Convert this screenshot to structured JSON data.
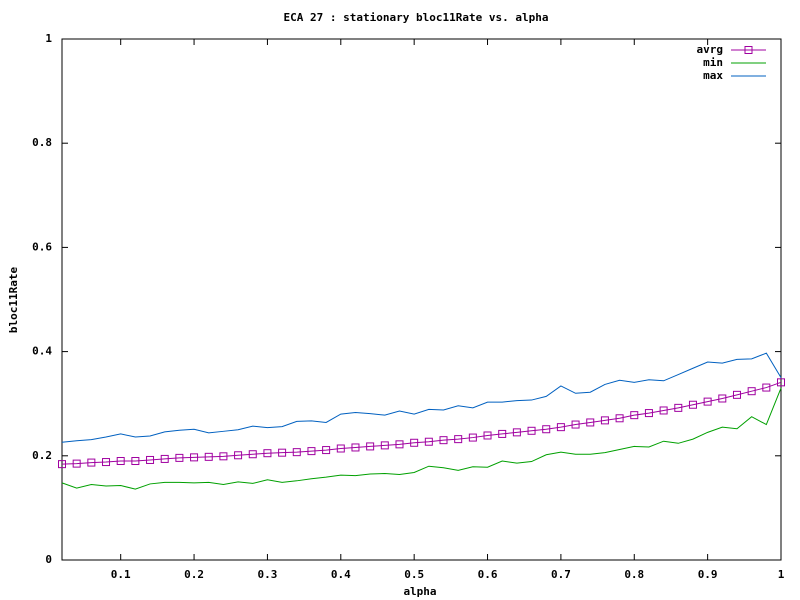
{
  "chart_data": {
    "type": "line",
    "title": "ECA 27 : stationary bloc11Rate vs. alpha",
    "x_label": "alpha",
    "y_label": "bloc11Rate",
    "x": [
      0.02,
      0.04,
      0.06,
      0.08,
      0.1,
      0.12,
      0.14,
      0.16,
      0.18,
      0.2,
      0.22,
      0.24,
      0.26,
      0.28,
      0.3,
      0.32,
      0.34,
      0.36,
      0.38,
      0.4,
      0.42,
      0.44,
      0.46,
      0.48,
      0.5,
      0.52,
      0.54,
      0.56,
      0.58,
      0.6,
      0.62,
      0.64,
      0.66,
      0.68,
      0.7,
      0.72,
      0.74,
      0.76,
      0.78,
      0.8,
      0.82,
      0.84,
      0.86,
      0.88,
      0.9,
      0.92,
      0.94,
      0.96,
      0.98,
      1
    ],
    "series": [
      {
        "name": "avrg",
        "color": "#a000a0",
        "marker": "square",
        "values": [
          0.184,
          0.185,
          0.187,
          0.188,
          0.19,
          0.19,
          0.192,
          0.194,
          0.196,
          0.197,
          0.198,
          0.199,
          0.201,
          0.203,
          0.205,
          0.206,
          0.207,
          0.209,
          0.211,
          0.214,
          0.216,
          0.218,
          0.22,
          0.222,
          0.225,
          0.227,
          0.23,
          0.232,
          0.235,
          0.239,
          0.242,
          0.245,
          0.248,
          0.251,
          0.255,
          0.26,
          0.264,
          0.268,
          0.272,
          0.278,
          0.282,
          0.287,
          0.292,
          0.298,
          0.304,
          0.31,
          0.317,
          0.324,
          0.331,
          0.341
        ]
      },
      {
        "name": "min",
        "color": "#00a000",
        "values": [
          0.148,
          0.138,
          0.145,
          0.142,
          0.143,
          0.136,
          0.146,
          0.149,
          0.149,
          0.148,
          0.149,
          0.145,
          0.15,
          0.147,
          0.154,
          0.149,
          0.152,
          0.156,
          0.159,
          0.163,
          0.162,
          0.165,
          0.166,
          0.164,
          0.168,
          0.18,
          0.177,
          0.172,
          0.179,
          0.178,
          0.19,
          0.186,
          0.189,
          0.202,
          0.207,
          0.203,
          0.203,
          0.206,
          0.212,
          0.218,
          0.217,
          0.228,
          0.224,
          0.232,
          0.245,
          0.255,
          0.252,
          0.275,
          0.26,
          0.33
        ]
      },
      {
        "name": "max",
        "color": "#0060c0",
        "values": [
          0.226,
          0.229,
          0.231,
          0.236,
          0.242,
          0.236,
          0.238,
          0.246,
          0.249,
          0.251,
          0.244,
          0.247,
          0.25,
          0.257,
          0.254,
          0.256,
          0.266,
          0.267,
          0.264,
          0.28,
          0.283,
          0.281,
          0.278,
          0.286,
          0.28,
          0.289,
          0.288,
          0.296,
          0.292,
          0.303,
          0.303,
          0.306,
          0.307,
          0.314,
          0.334,
          0.32,
          0.322,
          0.337,
          0.345,
          0.341,
          0.346,
          0.344,
          0.356,
          0.368,
          0.38,
          0.378,
          0.385,
          0.386,
          0.397,
          0.35
        ]
      }
    ],
    "xlim": [
      0.02,
      1
    ],
    "ylim": [
      0,
      1
    ],
    "xticks": [
      0.1,
      0.2,
      0.3,
      0.4,
      0.5,
      0.6,
      0.7,
      0.8,
      0.9,
      1
    ],
    "yticks": [
      0,
      0.2,
      0.4,
      0.6,
      0.8,
      1
    ],
    "legend": "top-right"
  }
}
